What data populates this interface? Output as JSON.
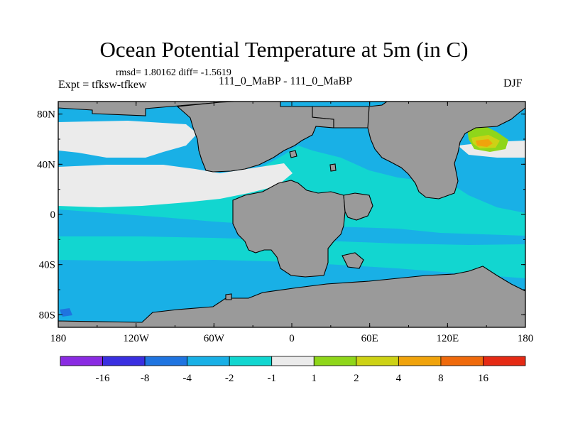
{
  "chart_data": {
    "type": "contour-map",
    "title": "Ocean Potential Temperature at 5m (in C)",
    "stats_label": "rmsd= 1.80162 diff= -1.5619",
    "experiment_label": "Expt = tfksw-tfkew",
    "case_label": "111_0_MaBP - 111_0_MaBP",
    "season_label": "DJF",
    "xlim": [
      -180,
      180
    ],
    "ylim": [
      -90,
      90
    ],
    "x_ticks": [
      {
        "value": -180,
        "label": "180"
      },
      {
        "value": -120,
        "label": "120W"
      },
      {
        "value": -60,
        "label": "60W"
      },
      {
        "value": 0,
        "label": "0"
      },
      {
        "value": 60,
        "label": "60E"
      },
      {
        "value": 120,
        "label": "120E"
      },
      {
        "value": 180,
        "label": "180"
      }
    ],
    "y_ticks": [
      {
        "value": 80,
        "label": "80N"
      },
      {
        "value": 40,
        "label": "40N"
      },
      {
        "value": 0,
        "label": "0"
      },
      {
        "value": -40,
        "label": "40S"
      },
      {
        "value": -80,
        "label": "80S"
      }
    ],
    "colorbar": {
      "levels": [
        -16,
        -8,
        -4,
        -2,
        -1,
        1,
        2,
        4,
        8,
        16
      ],
      "level_labels": [
        "-16",
        "-8",
        "-4",
        "-2",
        "-1",
        "1",
        "2",
        "4",
        "8",
        "16"
      ],
      "colors": [
        "#8a2be2",
        "#3a2fe0",
        "#1f74e0",
        "#19b0e6",
        "#12d6d0",
        "#ebebeb",
        "#8fd61a",
        "#cdd215",
        "#f0a30c",
        "#ef6a0c",
        "#e52a14"
      ]
    },
    "land_color": "#9a9a9a"
  }
}
